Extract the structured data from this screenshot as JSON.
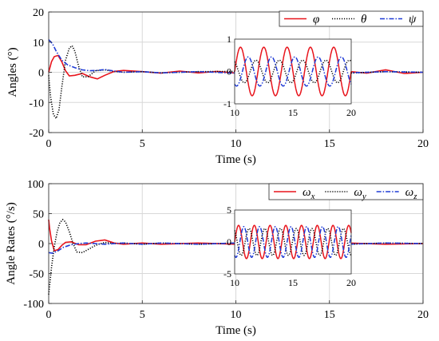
{
  "chart_data": [
    {
      "type": "line",
      "xlabel": "Time (s)",
      "ylabel": "Angles (°)",
      "xlim": [
        0,
        20
      ],
      "ylim": [
        -20,
        20
      ],
      "xticks": [
        "0",
        "5",
        "10",
        "15",
        "20"
      ],
      "yticks": [
        "-20",
        "-10",
        "0",
        "10",
        "20"
      ],
      "grid": true,
      "legend_position": "top-right",
      "series": [
        {
          "name": "φ",
          "color": "#e8141c",
          "dash": "solid",
          "x": [
            0,
            0.15,
            0.3,
            0.5,
            0.7,
            0.9,
            1.1,
            1.4,
            1.8,
            2.2,
            2.6,
            3.0,
            3.5,
            4.0,
            5.0,
            6.0,
            7.0,
            8.0,
            9.0,
            10.0,
            12.0,
            14.0,
            16.0,
            17.0,
            18.0,
            19.0,
            20.0
          ],
          "y": [
            0,
            3.5,
            5.2,
            5.6,
            3.5,
            0.5,
            -1.2,
            -1.0,
            -0.4,
            -1.5,
            -2.2,
            -1.0,
            0.3,
            0.6,
            0.2,
            -0.3,
            0.4,
            -0.2,
            0.3,
            -0.3,
            0.3,
            -0.3,
            0.3,
            -0.3,
            0.8,
            -0.4,
            0
          ]
        },
        {
          "name": "θ",
          "color": "#000000",
          "dash": "dotted",
          "x": [
            0,
            0.1,
            0.25,
            0.4,
            0.55,
            0.7,
            0.9,
            1.1,
            1.25,
            1.4,
            1.6,
            1.8,
            2.1,
            2.5,
            3.0,
            3.5,
            4.0,
            5.0,
            6.0,
            8.0,
            10.0,
            12.0,
            14.0,
            16.0,
            18.0,
            20.0
          ],
          "y": [
            -1,
            -8,
            -14,
            -15.3,
            -12.5,
            -5,
            4,
            8,
            8.8,
            7,
            2,
            -1.5,
            -1.5,
            0.5,
            0.8,
            0.3,
            0,
            0.2,
            -0.2,
            0.2,
            0.3,
            -0.3,
            0.3,
            -0.3,
            0.2,
            0
          ]
        },
        {
          "name": "ψ",
          "color": "#1f3bd6",
          "dash": "dashdot",
          "x": [
            0,
            0.2,
            0.4,
            0.7,
            1.0,
            1.4,
            1.8,
            2.2,
            2.6,
            3.0,
            3.5,
            4.0,
            5.0,
            6.0,
            8.0,
            10.0,
            12.0,
            14.0,
            16.0,
            18.0,
            20.0
          ],
          "y": [
            10.8,
            9.5,
            7,
            4,
            2.5,
            1.5,
            0.8,
            0.5,
            0.6,
            0.9,
            0.4,
            0,
            0.2,
            -0.2,
            0.2,
            -0.3,
            -0.2,
            0.2,
            -0.2,
            0.2,
            0
          ]
        }
      ],
      "inset": {
        "xlim": [
          10,
          20
        ],
        "ylim": [
          -1,
          1
        ],
        "xticks": [
          "10",
          "15",
          "20"
        ],
        "yticks": [
          "-1",
          "0",
          "1"
        ],
        "period": 2.0,
        "series": [
          {
            "name": "φ",
            "amplitude": 0.75,
            "phase": 0.0
          },
          {
            "name": "θ",
            "amplitude": 0.35,
            "phase": 2.1
          },
          {
            "name": "ψ",
            "amplitude": 0.45,
            "phase": 4.2
          }
        ]
      }
    },
    {
      "type": "line",
      "xlabel": "Time (s)",
      "ylabel": "Angle Rates (°/s)",
      "xlim": [
        0,
        20
      ],
      "ylim": [
        -100,
        100
      ],
      "xticks": [
        "0",
        "5",
        "10",
        "15",
        "20"
      ],
      "yticks": [
        "-100",
        "-50",
        "0",
        "50",
        "100"
      ],
      "grid": true,
      "legend_position": "top-right",
      "series": [
        {
          "name": "ωx",
          "color": "#e8141c",
          "dash": "solid",
          "x": [
            0,
            0.05,
            0.15,
            0.3,
            0.5,
            0.7,
            0.9,
            1.2,
            1.6,
            2.0,
            2.5,
            3.0,
            3.5,
            4.0,
            5.0,
            6.0,
            8.0,
            10.0,
            12.0,
            14.0,
            16.0,
            18.0,
            20.0
          ],
          "y": [
            40,
            25,
            5,
            -12,
            -10,
            -3,
            2,
            3,
            -2,
            -2,
            4,
            6,
            1,
            -1,
            1,
            -1,
            1,
            -1,
            1,
            -1,
            1,
            -1,
            0
          ]
        },
        {
          "name": "ωy",
          "color": "#000000",
          "dash": "dotted",
          "x": [
            0,
            0.05,
            0.15,
            0.3,
            0.45,
            0.6,
            0.75,
            0.9,
            1.1,
            1.3,
            1.5,
            1.8,
            2.1,
            2.5,
            3.0,
            3.5,
            4.0,
            5.0,
            6.0,
            8.0,
            10.0,
            12.0,
            14.0,
            16.0,
            18.0,
            20.0
          ],
          "y": [
            -85,
            -70,
            -40,
            -5,
            20,
            35,
            40,
            36,
            20,
            0,
            -14,
            -15,
            -10,
            -3,
            2,
            0,
            1,
            -1,
            1,
            -1,
            1,
            -1,
            1,
            -1,
            1,
            0
          ]
        },
        {
          "name": "ωz",
          "color": "#1f3bd6",
          "dash": "dashdot",
          "x": [
            0,
            0.2,
            0.5,
            0.8,
            1.2,
            1.6,
            2.0,
            2.5,
            3.0,
            3.5,
            4.0,
            5.0,
            6.0,
            8.0,
            10.0,
            12.0,
            14.0,
            16.0,
            18.0,
            20.0
          ],
          "y": [
            -15,
            -16,
            -12,
            -6,
            -2,
            0,
            1,
            0,
            -1,
            0,
            1,
            -1,
            1,
            -1,
            1,
            -1,
            1,
            -1,
            1,
            0
          ]
        }
      ],
      "inset": {
        "xlim": [
          10,
          20
        ],
        "ylim": [
          -5,
          5
        ],
        "xticks": [
          "10",
          "15",
          "20"
        ],
        "yticks": [
          "-5",
          "0",
          "5"
        ],
        "period": 1.35,
        "series": [
          {
            "name": "ωx",
            "amplitude": 2.6,
            "phase": 0.0
          },
          {
            "name": "ωy",
            "amplitude": 2.1,
            "phase": 2.1
          },
          {
            "name": "ωz",
            "amplitude": 2.4,
            "phase": 4.2
          }
        ]
      }
    }
  ]
}
